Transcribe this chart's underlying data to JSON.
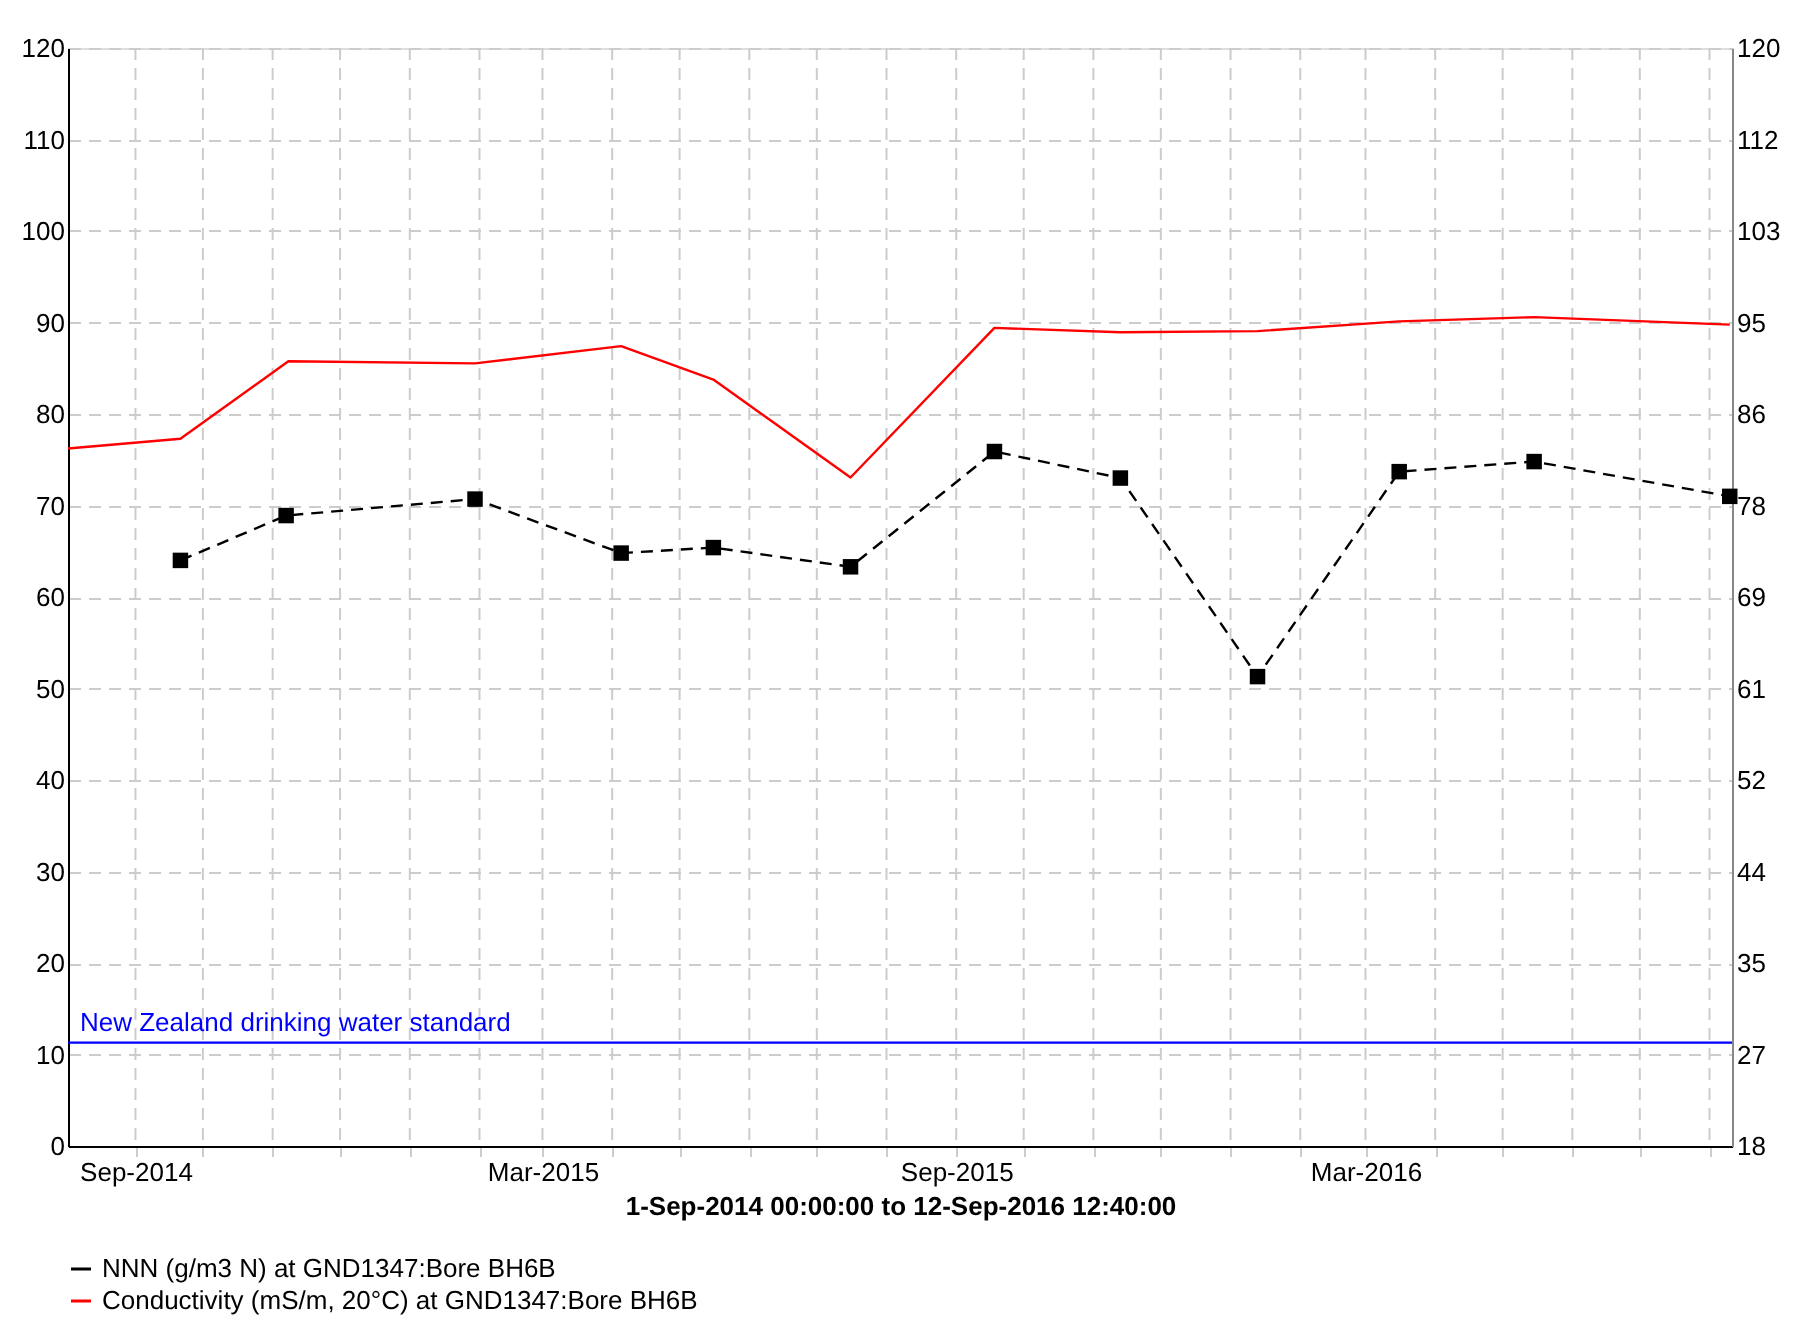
{
  "chart_data": {
    "type": "line",
    "xlabel": "1-Sep-2014 00:00:00 to 12-Sep-2016 12:40:00",
    "xlim": [
      "2014-08-02",
      "2016-08-11"
    ],
    "xticks": [
      {
        "value": "2014-09-01",
        "label": "Sep-2014"
      },
      {
        "value": "2014-10-01",
        "label": null
      },
      {
        "value": "2014-11-01",
        "label": null
      },
      {
        "value": "2014-12-01",
        "label": null
      },
      {
        "value": "2015-01-01",
        "label": null
      },
      {
        "value": "2015-02-01",
        "label": null
      },
      {
        "value": "2015-03-01",
        "label": "Mar-2015"
      },
      {
        "value": "2015-04-01",
        "label": null
      },
      {
        "value": "2015-05-01",
        "label": null
      },
      {
        "value": "2015-06-01",
        "label": null
      },
      {
        "value": "2015-07-01",
        "label": null
      },
      {
        "value": "2015-08-01",
        "label": null
      },
      {
        "value": "2015-09-01",
        "label": "Sep-2015"
      },
      {
        "value": "2015-10-01",
        "label": null
      },
      {
        "value": "2015-11-01",
        "label": null
      },
      {
        "value": "2015-12-01",
        "label": null
      },
      {
        "value": "2016-01-01",
        "label": null
      },
      {
        "value": "2016-02-01",
        "label": null
      },
      {
        "value": "2016-03-01",
        "label": "Mar-2016"
      },
      {
        "value": "2016-04-01",
        "label": null
      },
      {
        "value": "2016-05-01",
        "label": null
      },
      {
        "value": "2016-06-01",
        "label": null
      },
      {
        "value": "2016-07-01",
        "label": null
      },
      {
        "value": "2016-08-01",
        "label": null
      }
    ],
    "ylim": [
      0,
      120
    ],
    "yticks": [
      0,
      10,
      20,
      30,
      40,
      50,
      60,
      70,
      80,
      90,
      100,
      110,
      120
    ],
    "y2lim": [
      18,
      120
    ],
    "y2ticks": [
      18,
      {
        "value": 26.5,
        "label": "27"
      },
      35,
      {
        "value": 43.5,
        "label": "44"
      },
      52,
      {
        "value": 60.5,
        "label": "61"
      },
      69,
      {
        "value": 77.5,
        "label": "78"
      },
      86,
      {
        "value": 94.5,
        "label": "95"
      },
      103,
      {
        "value": 111.5,
        "label": "112"
      },
      120
    ],
    "series": [
      {
        "name": "NNN (g/m3 N) at GND1347:Bore BH6B",
        "color": "#000000",
        "marker": "square",
        "line_style": "dashed",
        "x": [
          "2014-09-21",
          "2014-11-07",
          "2015-01-30",
          "2015-04-05",
          "2015-05-16",
          "2015-07-16",
          "2015-09-18",
          "2015-11-13",
          "2016-01-13",
          "2016-03-16",
          "2016-05-15",
          "2016-08-10"
        ],
        "values": [
          64.0,
          68.9,
          70.7,
          64.8,
          65.4,
          63.3,
          75.9,
          73.0,
          51.3,
          73.7,
          74.8,
          71.0
        ]
      },
      {
        "name": "Conductivity (mS/m, 20°C) at GND1347:Bore BH6B",
        "color": "#ff0000",
        "axis": "y2",
        "marker": "none",
        "line_style": "solid",
        "x": [
          "2014-08-02",
          "2014-09-21",
          "2014-11-08",
          "2015-01-30",
          "2015-04-05",
          "2015-05-16",
          "2015-07-16",
          "2015-09-18",
          "2015-11-13",
          "2016-01-13",
          "2016-03-16",
          "2016-05-15",
          "2016-08-10"
        ],
        "values": [
          82.8,
          83.7,
          90.9,
          90.7,
          92.3,
          89.2,
          80.1,
          94.0,
          93.6,
          93.7,
          94.6,
          95.0,
          94.3
        ]
      }
    ],
    "ref_lines": [
      {
        "axis": "y",
        "value": 11.3,
        "label": "New Zealand drinking water standard",
        "color": "#0000ff"
      }
    ],
    "grid": true,
    "legend": "bottom"
  }
}
